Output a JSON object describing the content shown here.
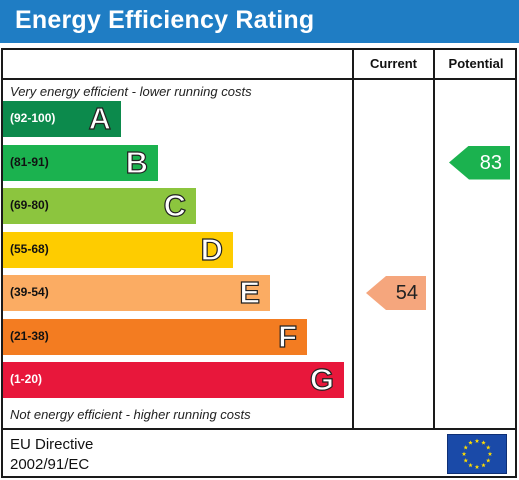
{
  "title": "Energy Efficiency Rating",
  "columns": {
    "current": "Current",
    "potential": "Potential"
  },
  "top_caption": "Very energy efficient - lower running costs",
  "bottom_caption": "Not energy efficient - higher running costs",
  "footer": {
    "line1": "EU Directive",
    "line2": "2002/91/EC"
  },
  "chart_data": {
    "type": "bar",
    "title": "Energy Efficiency Rating",
    "categories": [
      "A",
      "B",
      "C",
      "D",
      "E",
      "F",
      "G"
    ],
    "ranges": [
      "(92-100)",
      "(81-91)",
      "(69-80)",
      "(55-68)",
      "(39-54)",
      "(21-38)",
      "(1-20)"
    ],
    "colors": [
      "#0c8a4c",
      "#1bb24f",
      "#8cc53e",
      "#fecc00",
      "#fbac63",
      "#f37c21",
      "#e8173b"
    ],
    "current": {
      "value": 54,
      "band": "E",
      "color": "#f5a67d"
    },
    "potential": {
      "value": 83,
      "band": "B",
      "color": "#1bb24f"
    }
  }
}
